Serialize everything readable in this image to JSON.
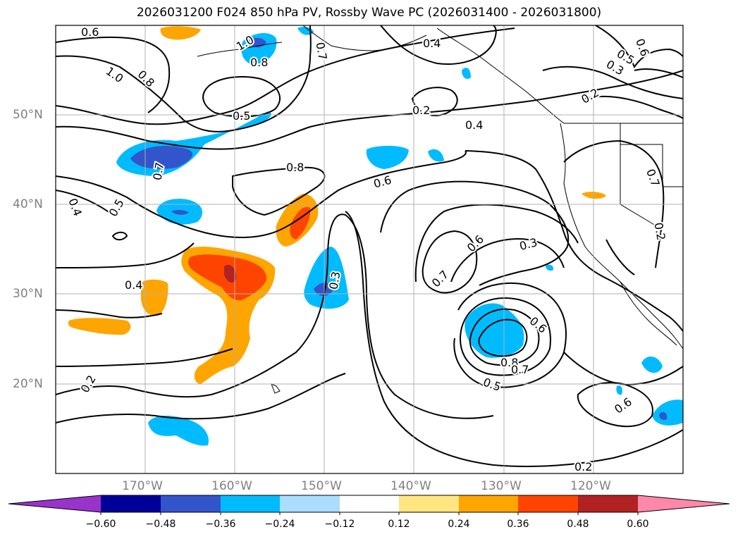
{
  "title": "2026031200 F024 850 hPa PV, Rossby Wave PC (2026031400 - 2026031800)",
  "map": {
    "lat_labels": [
      "50°N",
      "40°N",
      "30°N",
      "20°N"
    ],
    "lon_labels": [
      "170°W",
      "160°W",
      "150°W",
      "140°W",
      "130°W",
      "120°W"
    ],
    "contour_labels": [
      "0.6",
      "1.0",
      "0.8",
      "0.7",
      "0.4",
      "0.5",
      "0.6",
      "1.0",
      "0.8",
      "0.5",
      "0.2",
      "0.4",
      "0.2",
      "0.3",
      "0.7",
      "0.8",
      "0.6",
      "0.4",
      "0.5",
      "0.7",
      "0.6",
      "0.3",
      "0.7",
      "0.3",
      "0.4",
      "0.6",
      "0.8",
      "0.7",
      "0.5",
      "0.2",
      "0.6",
      "0.2",
      "0.2"
    ],
    "colors": {
      "line": "#000000",
      "grid": "#b0b0b0",
      "land_outline": "#000000"
    }
  },
  "colorbar": {
    "ticks": [
      "−0.60",
      "−0.48",
      "−0.36",
      "−0.24",
      "−0.12",
      "0.12",
      "0.24",
      "0.36",
      "0.48",
      "0.60"
    ],
    "colors": [
      "#9933cc",
      "#000099",
      "#3355cc",
      "#00bbff",
      "#aaddff",
      "#ffffff",
      "#ffe680",
      "#ffa500",
      "#ff4400",
      "#b22222",
      "#ff88aa"
    ]
  }
}
